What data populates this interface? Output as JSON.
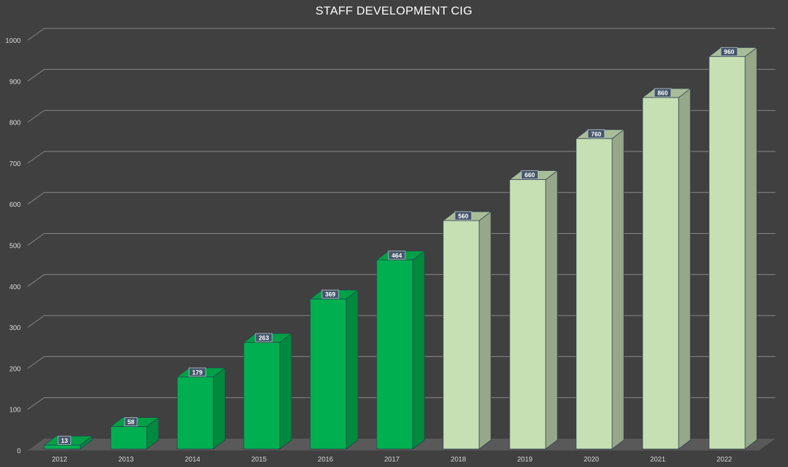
{
  "chart_data": {
    "type": "bar",
    "title": "STAFF DEVELOPMENT CIG",
    "categories": [
      "2012",
      "2013",
      "2014",
      "2015",
      "2016",
      "2017",
      "2018",
      "2019",
      "2020",
      "2021",
      "2022"
    ],
    "values": [
      13,
      58,
      179,
      263,
      369,
      464,
      560,
      660,
      760,
      860,
      960
    ],
    "ylim": [
      0,
      1000
    ],
    "yticks": [
      0,
      100,
      200,
      300,
      400,
      500,
      600,
      700,
      800,
      900,
      1000
    ],
    "grid": true,
    "legend": "none",
    "style": "3d-column",
    "colors": {
      "actual_front": "#00b050",
      "actual_side": "#008a3e",
      "actual_top": "#00a047",
      "projected_front": "#c6e0b4",
      "projected_side": "#97a88a",
      "projected_top": "#a9bd98",
      "background": "#404040",
      "gridline": "#8a8a8a",
      "floor": "#595959",
      "label_box": "#44546a"
    },
    "projected_from_index": 6
  }
}
